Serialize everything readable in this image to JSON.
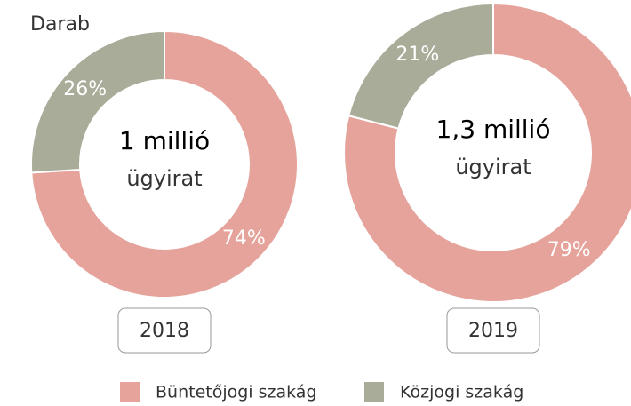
{
  "label": "Darab",
  "legend": {
    "categories": [
      "Büntetőjogi szakág",
      "Közjogi szakág"
    ],
    "colors": [
      "#e5a39b",
      "#a8ac98"
    ]
  },
  "chart_data": [
    {
      "type": "pie",
      "values": [
        74,
        26
      ],
      "value_labels": [
        "74%",
        "26%"
      ],
      "center_title": "1 millió",
      "center_subtitle": "ügyirat",
      "year": "2018"
    },
    {
      "type": "pie",
      "values": [
        79,
        21
      ],
      "value_labels": [
        "79%",
        "21%"
      ],
      "center_title": "1,3 millió",
      "center_subtitle": "ügyirat",
      "year": "2019"
    }
  ]
}
